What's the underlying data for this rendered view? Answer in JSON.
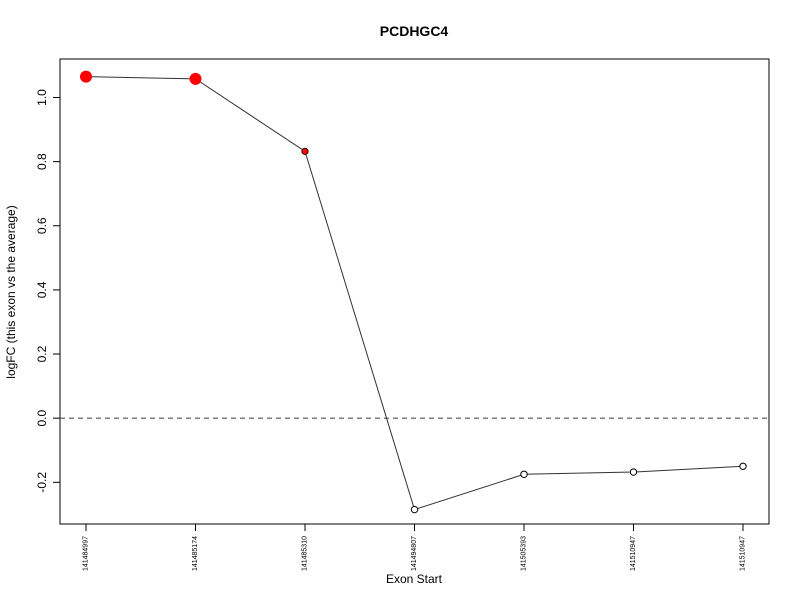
{
  "chart_data": {
    "type": "line",
    "title": "PCDHGC4",
    "xlabel": "Exon Start",
    "ylabel": "logFC (this exon vs the average)",
    "categories": [
      "141484997",
      "141485174",
      "141485310",
      "141494807",
      "141505393",
      "141510947",
      "141510947"
    ],
    "values": [
      1.065,
      1.058,
      0.832,
      -0.285,
      -0.175,
      -0.168,
      -0.15
    ],
    "ylim": [
      -0.33,
      1.12
    ],
    "yticks": [
      -0.2,
      0.0,
      0.2,
      0.4,
      0.6,
      0.8,
      1.0
    ],
    "ytick_labels": [
      "-0.2",
      "0.0",
      "0.2",
      "0.4",
      "0.6",
      "0.8",
      "1.0"
    ],
    "reference_line": 0,
    "line_color": "#333333",
    "highlight_color": "#ff0000",
    "point_styles": [
      "large-red",
      "large-red",
      "small-red",
      "open",
      "open",
      "open",
      "open"
    ],
    "grid": false,
    "legend": "none"
  }
}
